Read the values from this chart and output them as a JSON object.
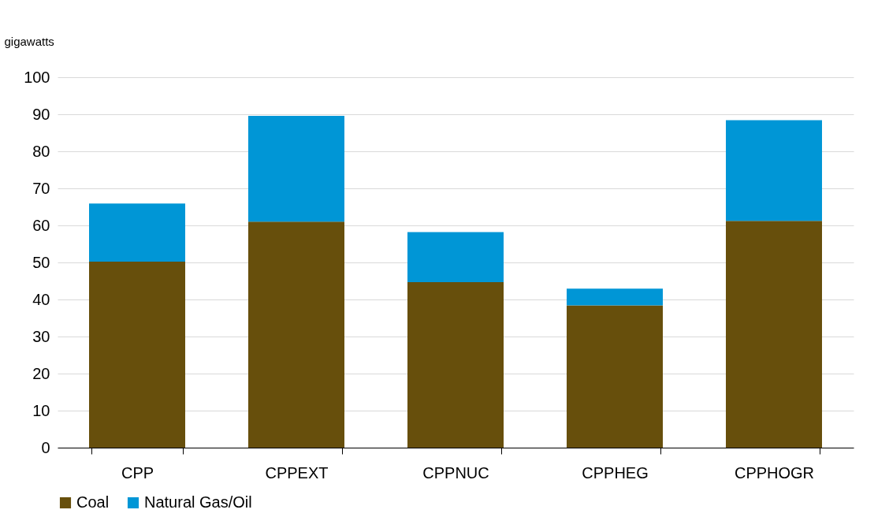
{
  "chart_data": {
    "type": "bar",
    "stacked": true,
    "ylabel": "gigawatts",
    "categories": [
      "CPP",
      "CPPEXT",
      "CPPNUC",
      "CPPHEG",
      "CPPHOGR"
    ],
    "series": [
      {
        "name": "Coal",
        "color": "#674f0c",
        "values": [
          50.2,
          61.0,
          44.7,
          38.4,
          61.2
        ]
      },
      {
        "name": "Natural Gas/Oil",
        "color": "#0096d6",
        "values": [
          15.7,
          28.6,
          13.5,
          4.5,
          27.2
        ]
      }
    ],
    "ylim": [
      0,
      100
    ],
    "yticks": [
      0,
      10,
      20,
      30,
      40,
      50,
      60,
      70,
      80,
      90,
      100
    ],
    "grid": "y",
    "legend": "bottom"
  }
}
